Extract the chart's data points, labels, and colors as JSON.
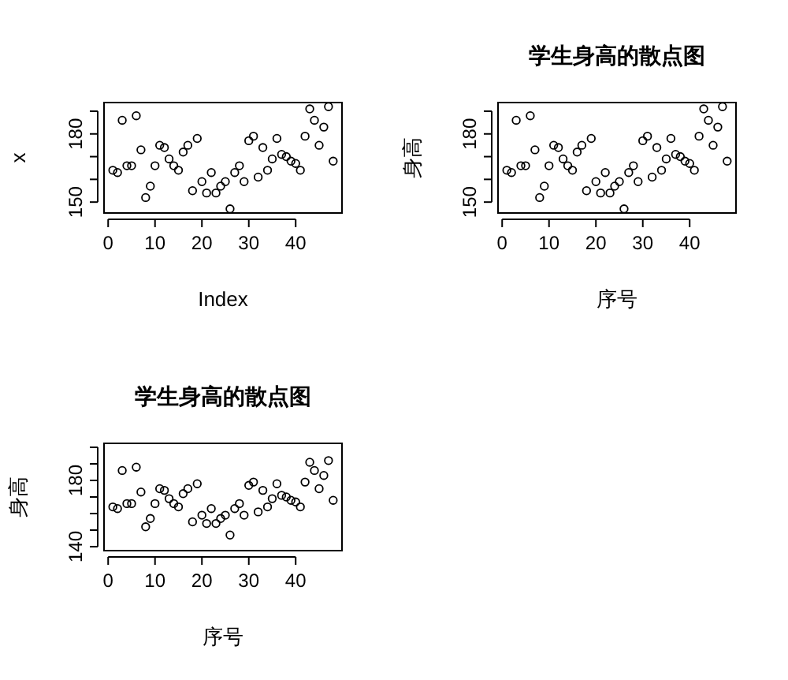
{
  "chart_data": [
    {
      "type": "scatter",
      "xlabel": "Index",
      "ylabel": "x",
      "marker": "circle",
      "color": "#000000",
      "x": [
        1,
        2,
        3,
        4,
        5,
        6,
        7,
        8,
        9,
        10,
        11,
        12,
        13,
        14,
        15,
        16,
        17,
        18,
        19,
        20,
        21,
        22,
        23,
        24,
        25,
        26,
        27,
        28,
        29,
        30,
        31,
        32,
        33,
        34,
        35,
        36,
        37,
        38,
        39,
        40,
        41,
        42,
        43,
        44,
        45,
        46,
        47,
        48
      ],
      "values": [
        164,
        163,
        186,
        166,
        166,
        188,
        173,
        152,
        157,
        166,
        175,
        174,
        169,
        166,
        164,
        172,
        175,
        155,
        178,
        159,
        154,
        163,
        154,
        157,
        159,
        147,
        163,
        166,
        159,
        177,
        179,
        161,
        174,
        164,
        169,
        178,
        171,
        170,
        168,
        167,
        164,
        179,
        191,
        186,
        175,
        183,
        192,
        168
      ],
      "xlim": [
        -0.88,
        49.88
      ],
      "ylim": [
        145.2,
        193.8
      ],
      "xticks": [
        0,
        10,
        20,
        30,
        40
      ],
      "yticks": [
        150,
        {
          "value": 160,
          "label": null
        },
        {
          "value": 170,
          "label": null
        },
        180,
        {
          "value": 190,
          "label": null
        }
      ]
    },
    {
      "type": "scatter",
      "title": "学生身高的散点图",
      "xlabel": "序号",
      "ylabel": "身高",
      "marker": "circle",
      "color": "#000000",
      "x": [
        1,
        2,
        3,
        4,
        5,
        6,
        7,
        8,
        9,
        10,
        11,
        12,
        13,
        14,
        15,
        16,
        17,
        18,
        19,
        20,
        21,
        22,
        23,
        24,
        25,
        26,
        27,
        28,
        29,
        30,
        31,
        32,
        33,
        34,
        35,
        36,
        37,
        38,
        39,
        40,
        41,
        42,
        43,
        44,
        45,
        46,
        47,
        48
      ],
      "values": [
        164,
        163,
        186,
        166,
        166,
        188,
        173,
        152,
        157,
        166,
        175,
        174,
        169,
        166,
        164,
        172,
        175,
        155,
        178,
        159,
        154,
        163,
        154,
        157,
        159,
        147,
        163,
        166,
        159,
        177,
        179,
        161,
        174,
        164,
        169,
        178,
        171,
        170,
        168,
        167,
        164,
        179,
        191,
        186,
        175,
        183,
        192,
        168
      ],
      "xlim": [
        -0.88,
        49.88
      ],
      "ylim": [
        145.2,
        193.8
      ],
      "xticks": [
        0,
        10,
        20,
        30,
        40
      ],
      "yticks": [
        150,
        {
          "value": 160,
          "label": null
        },
        {
          "value": 170,
          "label": null
        },
        180,
        {
          "value": 190,
          "label": null
        }
      ]
    },
    {
      "type": "scatter",
      "title": "学生身高的散点图",
      "xlabel": "序号",
      "ylabel": "身高",
      "marker": "circle",
      "color": "#000000",
      "x": [
        1,
        2,
        3,
        4,
        5,
        6,
        7,
        8,
        9,
        10,
        11,
        12,
        13,
        14,
        15,
        16,
        17,
        18,
        19,
        20,
        21,
        22,
        23,
        24,
        25,
        26,
        27,
        28,
        29,
        30,
        31,
        32,
        33,
        34,
        35,
        36,
        37,
        38,
        39,
        40,
        41,
        42,
        43,
        44,
        45,
        46,
        47,
        48
      ],
      "values": [
        164,
        163,
        186,
        166,
        166,
        188,
        173,
        152,
        157,
        166,
        175,
        174,
        169,
        166,
        164,
        172,
        175,
        155,
        178,
        159,
        154,
        163,
        154,
        157,
        159,
        147,
        163,
        166,
        159,
        177,
        179,
        161,
        174,
        164,
        169,
        178,
        171,
        170,
        168,
        167,
        164,
        179,
        191,
        186,
        175,
        183,
        192,
        168
      ],
      "xlim": [
        -0.88,
        49.88
      ],
      "ylim": [
        137.6,
        202.4
      ],
      "xticks": [
        0,
        10,
        20,
        30,
        40
      ],
      "yticks": [
        140,
        {
          "value": 150,
          "label": null
        },
        {
          "value": 160,
          "label": null
        },
        {
          "value": 170,
          "label": null
        },
        180,
        {
          "value": 190,
          "label": null
        },
        {
          "value": 200,
          "label": null
        }
      ]
    }
  ]
}
